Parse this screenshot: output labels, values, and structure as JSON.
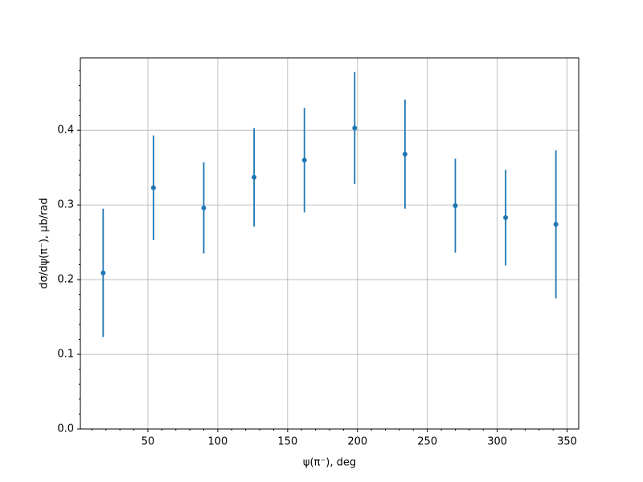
{
  "chart_data": {
    "type": "errorbar",
    "xlabel": "ψ(π⁻), deg",
    "ylabel": "dσ/dψ(π⁻), μb/rad",
    "x": [
      18,
      54,
      90,
      126,
      162,
      198,
      234,
      270,
      306,
      342
    ],
    "values": [
      0.209,
      0.323,
      0.296,
      0.337,
      0.36,
      0.403,
      0.368,
      0.299,
      0.283,
      0.274
    ],
    "errors": [
      0.086,
      0.07,
      0.061,
      0.066,
      0.07,
      0.075,
      0.073,
      0.063,
      0.064,
      0.099
    ],
    "color": "#1f77b4",
    "xlim": [
      1.7,
      358.3
    ],
    "ylim": [
      0,
      0.497
    ],
    "xticks": [
      50,
      100,
      150,
      200,
      250,
      300,
      350
    ],
    "yticks": [
      {
        "value": 0,
        "label": "0.0"
      },
      0.1,
      0.2,
      0.3,
      0.4
    ],
    "xminorticks": [
      10,
      20,
      30,
      40,
      60,
      70,
      80,
      90,
      110,
      120,
      130,
      140,
      160,
      170,
      180,
      190,
      210,
      220,
      230,
      240,
      260,
      270,
      280,
      290,
      310,
      320,
      330,
      340
    ],
    "yminorticks": [
      0.02,
      0.04,
      0.06,
      0.08,
      0.12,
      0.14,
      0.16,
      0.18,
      0.22,
      0.24,
      0.26,
      0.28,
      0.32,
      0.34,
      0.36,
      0.38,
      0.42,
      0.44,
      0.46,
      0.48
    ],
    "grid": true
  }
}
